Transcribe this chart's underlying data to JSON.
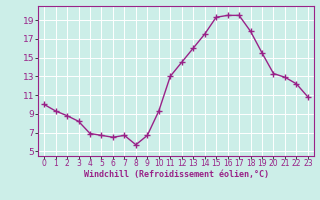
{
  "x": [
    0,
    1,
    2,
    3,
    4,
    5,
    6,
    7,
    8,
    9,
    10,
    11,
    12,
    13,
    14,
    15,
    16,
    17,
    18,
    19,
    20,
    21,
    22,
    23
  ],
  "y": [
    10.0,
    9.3,
    8.8,
    8.2,
    6.9,
    6.7,
    6.5,
    6.7,
    5.7,
    6.7,
    9.3,
    13.0,
    14.5,
    16.0,
    17.5,
    19.3,
    19.5,
    19.5,
    17.8,
    15.5,
    13.3,
    12.9,
    12.2,
    10.8
  ],
  "line_color": "#992288",
  "marker": "+",
  "marker_size": 4,
  "marker_linewidth": 1.0,
  "background_color": "#cceee8",
  "grid_color": "#ffffff",
  "xlabel": "Windchill (Refroidissement éolien,°C)",
  "xlim": [
    -0.5,
    23.5
  ],
  "ylim": [
    4.5,
    20.5
  ],
  "yticks": [
    5,
    7,
    9,
    11,
    13,
    15,
    17,
    19
  ],
  "xticks": [
    0,
    1,
    2,
    3,
    4,
    5,
    6,
    7,
    8,
    9,
    10,
    11,
    12,
    13,
    14,
    15,
    16,
    17,
    18,
    19,
    20,
    21,
    22,
    23
  ],
  "tick_color": "#992288",
  "label_color": "#992288",
  "spine_color": "#992288",
  "linewidth": 1.0,
  "xlabel_fontsize": 6.0,
  "ytick_fontsize": 6.5,
  "xtick_fontsize": 5.5
}
